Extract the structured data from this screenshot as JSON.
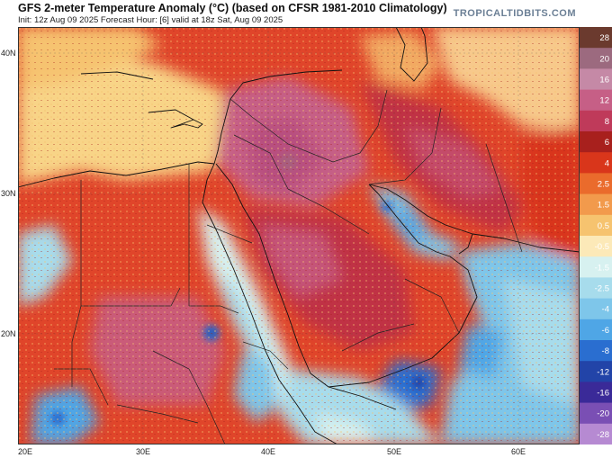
{
  "header": {
    "title": "GFS 2-meter Temperature Anomaly (°C) (based on CFSR 1981-2010 Climatology)",
    "subtitle": "Init: 12z Aug 09 2025   Forecast Hour: [6]   valid at 18z Sat, Aug 09 2025",
    "site": "TROPICALTIDBITS.COM"
  },
  "map": {
    "lat_labels": [
      "40N",
      "30N",
      "20N"
    ],
    "lon_labels": [
      "20E",
      "30E",
      "40E",
      "50E",
      "60E"
    ]
  },
  "colorbar": {
    "labels": [
      "28",
      "20",
      "16",
      "12",
      "8",
      "6",
      "4",
      "2.5",
      "1.5",
      "0.5",
      "-0.5",
      "-1.5",
      "-2.5",
      "-4",
      "-6",
      "-8",
      "-12",
      "-16",
      "-20",
      "-28"
    ],
    "colors": [
      "#6b3a2e",
      "#9c6a7f",
      "#c589a6",
      "#c65f86",
      "#bf3a5a",
      "#a8201d",
      "#d9361b",
      "#ea6b2c",
      "#f29a4c",
      "#f6c36f",
      "#fce9b8",
      "#d7f1f0",
      "#a7dcec",
      "#7ec6ea",
      "#4fa6e6",
      "#2a6ed0",
      "#2244a8",
      "#3a2a98",
      "#7a4fb4",
      "#b68ad2"
    ]
  }
}
